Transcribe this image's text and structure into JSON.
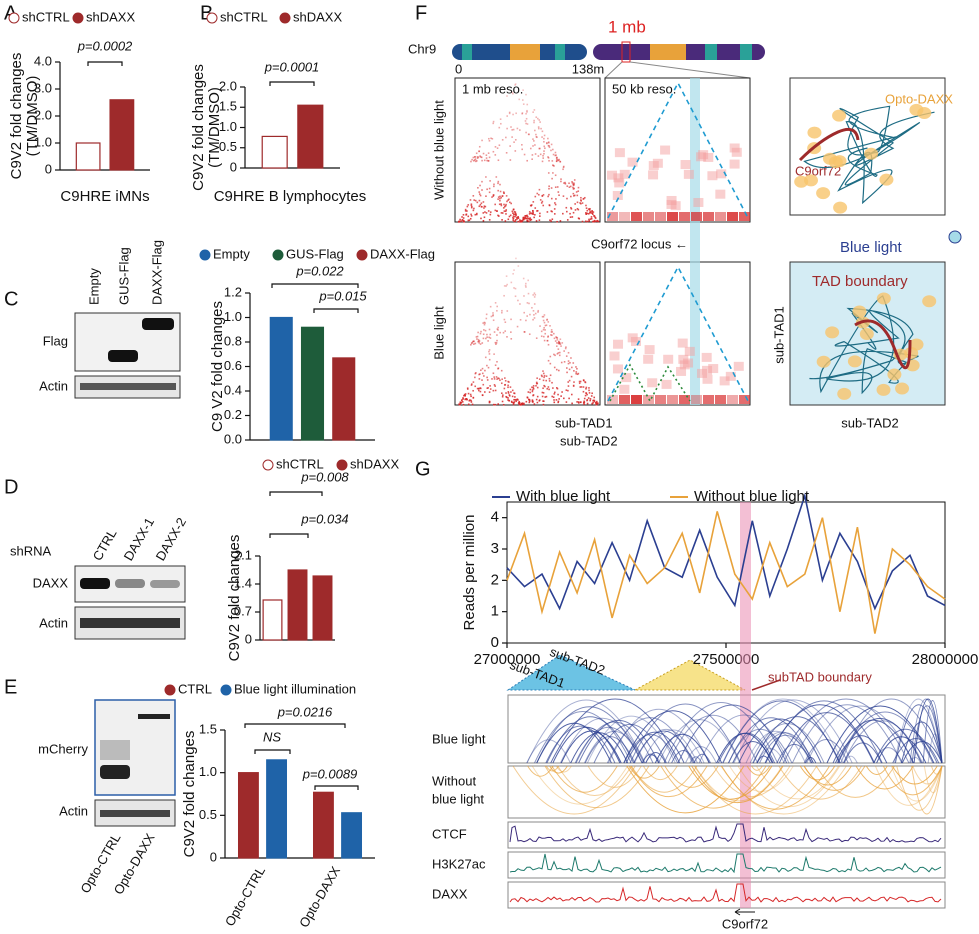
{
  "chart_data": [
    {
      "type": "bar",
      "ylabel": [
        "C9V2 fold changes",
        "(TM/DMSO)"
      ],
      "xlabel": "C9HRE iMNs",
      "categories": [
        null
      ],
      "series": [
        {
          "name": "shCTRL",
          "color": "#ffffff",
          "values": [
            1.0
          ]
        },
        {
          "name": "shDAXX",
          "color": "#9e2a2b",
          "values": [
            2.6
          ]
        }
      ],
      "ylim": [
        0,
        4
      ],
      "yticks": [
        0,
        {
          "value": 1,
          "label": "1.0"
        },
        {
          "value": 2,
          "label": "2.0"
        },
        {
          "value": 3,
          "label": "3.0"
        },
        {
          "value": 4,
          "label": "4.0"
        }
      ],
      "annotations": [
        "p=0.0002"
      ]
    },
    {
      "type": "bar",
      "ylabel": [
        "C9V2 fold changes",
        "(TM/DMSO)"
      ],
      "xlabel": "C9HRE B lymphocytes",
      "categories": [
        null
      ],
      "series": [
        {
          "name": "shCTRL",
          "color": "#ffffff",
          "values": [
            0.78
          ]
        },
        {
          "name": "shDAXX",
          "color": "#9e2a2b",
          "values": [
            1.55
          ]
        }
      ],
      "ylim": [
        0,
        2
      ],
      "yticks": [
        0,
        0.5,
        {
          "value": 1,
          "label": "1.0"
        },
        1.5,
        {
          "value": 2,
          "label": "2.0"
        }
      ],
      "annotations": [
        "p=0.0001"
      ]
    },
    {
      "type": "bar",
      "ylabel": "C9 V2 fold changes",
      "categories": [
        null
      ],
      "series": [
        {
          "name": "Empty",
          "color": "#1f63a8",
          "values": [
            1.0
          ]
        },
        {
          "name": "GUS-Flag",
          "color": "#1e5c3a",
          "values": [
            0.92
          ]
        },
        {
          "name": "DAXX-Flag",
          "color": "#9e2a2b",
          "values": [
            0.67
          ]
        }
      ],
      "ylim": [
        0,
        1.2
      ],
      "yticks": [
        {
          "value": 0,
          "label": "0.0"
        },
        0.2,
        0.4,
        0.6,
        0.8,
        {
          "value": 1,
          "label": "1.0"
        },
        1.2
      ],
      "annotations": [
        "p=0.022",
        "p=0.015"
      ]
    },
    {
      "type": "bar",
      "ylabel": "C9V2 fold changes",
      "categories": [
        null,
        null,
        null
      ],
      "series": [
        {
          "name": "shCTRL",
          "color": "#ffffff",
          "values": [
            1.0,
            null,
            null
          ]
        },
        {
          "name": "shDAXX",
          "color": "#9e2a2b",
          "values": [
            null,
            1.75,
            1.6
          ]
        }
      ],
      "ylim": [
        0,
        2.1
      ],
      "yticks": [
        0,
        0.7,
        1.4,
        2.1
      ],
      "annotations": [
        "p=0.008",
        "p=0.034"
      ]
    },
    {
      "type": "bar",
      "ylabel": "C9V2 fold changes",
      "categories": [
        "Opto-CTRL",
        "Opto-DAXX"
      ],
      "series": [
        {
          "name": "CTRL",
          "color": "#9e2a2b",
          "values": [
            1.0,
            0.77
          ]
        },
        {
          "name": "Blue light illumination",
          "color": "#1f63a8",
          "values": [
            1.15,
            0.53
          ]
        }
      ],
      "ylim": [
        0,
        1.5
      ],
      "yticks": [
        0,
        0.5,
        {
          "value": 1,
          "label": "1.0"
        },
        1.5
      ],
      "annotations": [
        "p=0.0216",
        "NS",
        "p=0.0089"
      ]
    },
    {
      "type": "line",
      "ylabel": "Reads per million",
      "x": [
        27000000,
        27040000,
        27080000,
        27120000,
        27160000,
        27200000,
        27240000,
        27280000,
        27320000,
        27360000,
        27400000,
        27440000,
        27480000,
        27520000,
        27560000,
        27600000,
        27640000,
        27680000,
        27720000,
        27760000,
        27800000,
        27840000,
        27880000,
        27920000,
        27960000,
        28000000
      ],
      "series": [
        {
          "name": "With blue light",
          "color": "#2b3f91",
          "values": [
            2.4,
            1.8,
            2.2,
            1.1,
            2.6,
            1.9,
            3.2,
            2.0,
            3.9,
            2.4,
            2.1,
            3.6,
            2.1,
            1.2,
            3.9,
            1.5,
            3.0,
            4.7,
            2.0,
            3.5,
            2.6,
            1.1,
            2.3,
            2.8,
            1.5,
            1.2
          ]
        },
        {
          "name": "Without blue light",
          "color": "#e8a23a",
          "values": [
            2.0,
            3.5,
            1.0,
            2.9,
            1.6,
            3.3,
            0.8,
            2.8,
            1.9,
            2.4,
            3.5,
            1.6,
            4.2,
            2.2,
            1.4,
            3.2,
            1.8,
            2.2,
            4.0,
            1.0,
            3.7,
            0.3,
            3.0,
            2.5,
            1.8,
            1.4
          ]
        }
      ],
      "xlim": [
        27000000,
        28000000
      ],
      "xticks": [
        27000000,
        27500000,
        28000000
      ],
      "ylim": [
        0,
        4.5
      ],
      "yticks": [
        0,
        1,
        2,
        3,
        4
      ]
    }
  ],
  "panels": {
    "letters": [
      "A",
      "B",
      "C",
      "D",
      "E",
      "F",
      "G"
    ],
    "C": {
      "lanes": [
        "Empty",
        "GUS-Flag",
        "DAXX-Flag"
      ],
      "rows": [
        "Flag",
        "Actin"
      ]
    },
    "D": {
      "group": "shRNA",
      "lanes": [
        "CTRL",
        "DAXX-1",
        "DAXX-2"
      ],
      "rows": [
        "DAXX",
        "Actin"
      ]
    },
    "E": {
      "lanes": [
        "Opto-CTRL",
        "Opto-DAXX"
      ],
      "rows": [
        "mCherry",
        "Actin"
      ]
    },
    "F": {
      "chrom": "Chr9",
      "start": "0",
      "end": "138m",
      "zoom": "1 mb",
      "res1": "1 mb reso.",
      "res2": "50 kb reso.",
      "row1": "Without blue light",
      "row2": "Blue light",
      "locus": "C9orf72 locus ←",
      "sub1": "sub-TAD1",
      "sub2": "sub-TAD2",
      "opto": "Opto-DAXX",
      "gene": "C9orf72",
      "light": "Blue light",
      "boundary": "TAD boundary",
      "s_sub1": "sub-TAD1",
      "s_sub2": "sub-TAD2"
    },
    "G": {
      "sub1": "sub-TAD1",
      "sub2": "sub-TAD2",
      "boundary": "subTAD boundary",
      "tracks": [
        "Blue light",
        [
          "Without",
          "blue light"
        ],
        "CTCF",
        "H3K27ac",
        "DAXX"
      ],
      "gene": "C9orf72"
    }
  }
}
